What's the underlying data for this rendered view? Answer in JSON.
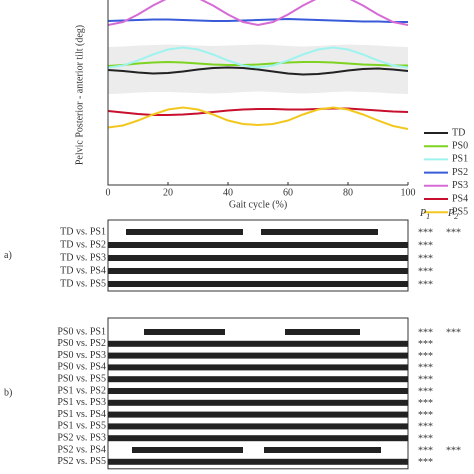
{
  "chart_data": {
    "type": "line",
    "xlabel": "Gait cycle (%)",
    "ylabel": "Pelvic  Posterior - anterior tilt (deg)",
    "x": [
      0,
      5,
      10,
      15,
      20,
      25,
      30,
      35,
      40,
      45,
      50,
      55,
      60,
      65,
      70,
      75,
      80,
      85,
      90,
      95,
      100
    ],
    "xlim": [
      0,
      100
    ],
    "xticks": [
      0,
      20,
      40,
      60,
      80,
      100
    ],
    "ylim": [
      -11,
      26
    ],
    "band": {
      "color": "#ececec",
      "lower": [
        7.2,
        7.3,
        7.5,
        7.6,
        7.6,
        7.5,
        7.4,
        7.3,
        7.4,
        7.6,
        7.7,
        7.6,
        7.4,
        7.3,
        7.4,
        7.6,
        7.7,
        7.6,
        7.5,
        7.3,
        7.2
      ],
      "upper": [
        16.6,
        16.7,
        16.9,
        17.0,
        17.1,
        17.0,
        16.9,
        16.8,
        16.9,
        17.0,
        17.1,
        17.0,
        16.8,
        16.7,
        16.8,
        17.0,
        17.1,
        17.0,
        16.9,
        16.7,
        16.6
      ]
    },
    "series": [
      {
        "name": "TD",
        "color": "#222222",
        "values": [
          12,
          11.8,
          11.5,
          11.3,
          11.4,
          11.7,
          12.1,
          12.4,
          12.5,
          12.4,
          12.1,
          11.7,
          11.3,
          11.1,
          11.2,
          11.5,
          11.9,
          12.2,
          12.3,
          12.1,
          11.8
        ]
      },
      {
        "name": "PS0",
        "color": "#7ed321",
        "values": [
          12.8,
          13,
          13.3,
          13.5,
          13.6,
          13.5,
          13.3,
          13.1,
          13,
          13,
          13.1,
          13.3,
          13.5,
          13.6,
          13.6,
          13.5,
          13.3,
          13.1,
          13,
          12.9,
          12.9
        ]
      },
      {
        "name": "PS1",
        "color": "#9ff3ef",
        "values": [
          12.5,
          12.9,
          13.9,
          15.1,
          16.1,
          16.5,
          16.1,
          15.1,
          13.9,
          12.9,
          12.5,
          12.9,
          13.9,
          15.1,
          16.1,
          16.5,
          16.1,
          15.1,
          13.9,
          12.9,
          12.5
        ]
      },
      {
        "name": "PS2",
        "color": "#3a5bd9",
        "values": [
          21.8,
          21.9,
          22,
          22.1,
          22.1,
          22,
          21.9,
          21.8,
          21.8,
          21.9,
          22,
          22.1,
          22.2,
          22.1,
          22,
          21.9,
          21.8,
          21.7,
          21.7,
          21.6,
          21.6
        ]
      },
      {
        "name": "PS3",
        "color": "#d66bd6",
        "values": [
          21,
          21.6,
          23.1,
          24.9,
          26.4,
          27,
          26.4,
          24.9,
          23.1,
          21.6,
          21,
          21.6,
          23.1,
          24.9,
          26.4,
          27,
          26.4,
          24.9,
          23.1,
          21.6,
          21
        ]
      },
      {
        "name": "PS4",
        "color": "#c8102e",
        "values": [
          3.8,
          3.5,
          3.2,
          3.0,
          3.0,
          3.1,
          3.3,
          3.6,
          3.9,
          4.1,
          4.2,
          4.2,
          4.1,
          4.1,
          4.2,
          4.3,
          4.3,
          4.1,
          3.9,
          3.7,
          3.6
        ]
      },
      {
        "name": "PS5",
        "color": "#f2c81f",
        "values": [
          0.5,
          0.9,
          1.9,
          3.1,
          4.1,
          4.5,
          4.1,
          3.1,
          1.9,
          1.2,
          1,
          1.2,
          1.9,
          3.1,
          4.1,
          4.5,
          4.1,
          3.1,
          1.9,
          0.8,
          0.2
        ]
      }
    ]
  },
  "p_headers": [
    {
      "letter": "P",
      "subscript": "1"
    },
    {
      "letter": "P",
      "subscript": "2"
    }
  ],
  "panels": [
    {
      "label": "a)",
      "rows": [
        {
          "name": "TD vs. PS1",
          "segments": [
            [
              6,
              45
            ],
            [
              51,
              90
            ]
          ],
          "p": [
            "***",
            "***"
          ]
        },
        {
          "name": "TD vs. PS2",
          "segments": [
            [
              0,
              100
            ]
          ],
          "p": [
            "***"
          ]
        },
        {
          "name": "TD vs. PS3",
          "segments": [
            [
              0,
              100
            ]
          ],
          "p": [
            "***"
          ]
        },
        {
          "name": "TD vs. PS4",
          "segments": [
            [
              0,
              100
            ]
          ],
          "p": [
            "***"
          ]
        },
        {
          "name": "TD vs. PS5",
          "segments": [
            [
              0,
              100
            ]
          ],
          "p": [
            "***"
          ]
        }
      ]
    },
    {
      "label": "b)",
      "rows": [
        {
          "name": "PS0 vs. PS1",
          "segments": [
            [
              12,
              39
            ],
            [
              59,
              84
            ]
          ],
          "p": [
            "***",
            "***"
          ]
        },
        {
          "name": "PS0 vs. PS2",
          "segments": [
            [
              0,
              100
            ]
          ],
          "p": [
            "***"
          ]
        },
        {
          "name": "PS0 vs. PS3",
          "segments": [
            [
              0,
              100
            ]
          ],
          "p": [
            "***"
          ]
        },
        {
          "name": "PS0 vs. PS4",
          "segments": [
            [
              0,
              100
            ]
          ],
          "p": [
            "***"
          ]
        },
        {
          "name": "PS0 vs. PS5",
          "segments": [
            [
              0,
              100
            ]
          ],
          "p": [
            "***"
          ]
        },
        {
          "name": "PS1 vs. PS2",
          "segments": [
            [
              0,
              100
            ]
          ],
          "p": [
            "***"
          ]
        },
        {
          "name": "PS1 vs. PS3",
          "segments": [
            [
              0,
              100
            ]
          ],
          "p": [
            "***"
          ]
        },
        {
          "name": "PS1 vs. PS4",
          "segments": [
            [
              0,
              100
            ]
          ],
          "p": [
            "***"
          ]
        },
        {
          "name": "PS1 vs. PS5",
          "segments": [
            [
              0,
              100
            ]
          ],
          "p": [
            "***"
          ]
        },
        {
          "name": "PS2 vs. PS3",
          "segments": [
            [
              0,
              100
            ]
          ],
          "p": [
            "***"
          ]
        },
        {
          "name": "PS2 vs. PS4",
          "segments": [
            [
              8,
              45
            ],
            [
              52,
              91
            ]
          ],
          "p": [
            "***",
            "***"
          ]
        },
        {
          "name": "PS2 vs. PS5",
          "segments": [
            [
              0,
              100
            ]
          ],
          "p": [
            "***"
          ]
        }
      ]
    }
  ]
}
